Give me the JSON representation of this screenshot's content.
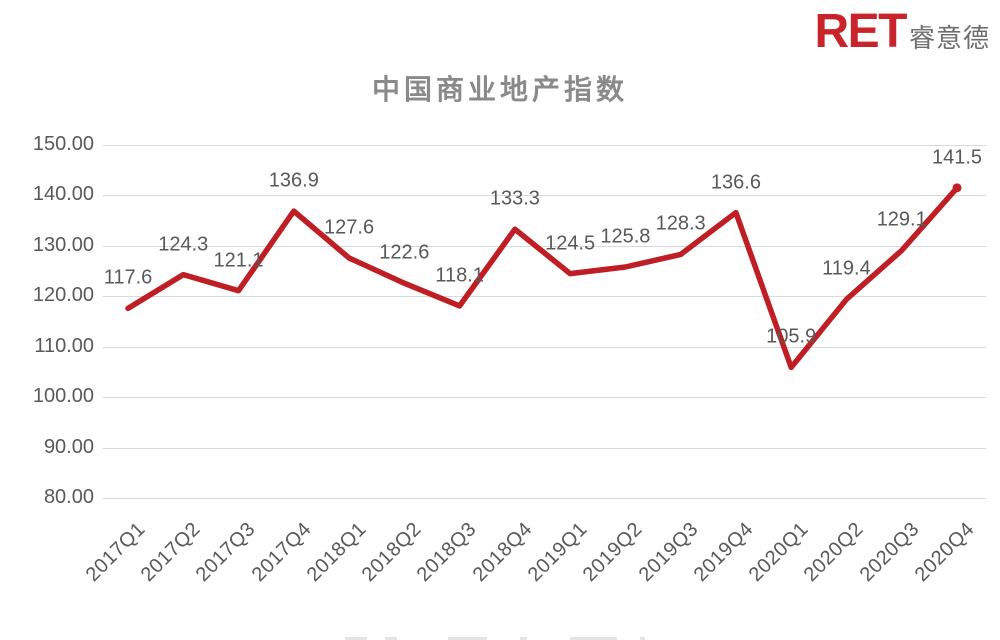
{
  "logo": {
    "ret_label": "RET",
    "cn_label": "睿意德",
    "ret_color": "#C9242B",
    "cn_color": "#6e6e6e"
  },
  "chart_data": {
    "type": "line",
    "title": "中国商业地产指数",
    "categories": [
      "2017Q1",
      "2017Q2",
      "2017Q3",
      "2017Q4",
      "2018Q1",
      "2018Q2",
      "2018Q3",
      "2018Q4",
      "2019Q1",
      "2019Q2",
      "2019Q3",
      "2019Q4",
      "2020Q1",
      "2020Q2",
      "2020Q3",
      "2020Q4"
    ],
    "values": [
      117.6,
      124.3,
      121.1,
      136.9,
      127.6,
      122.6,
      118.1,
      133.3,
      124.5,
      125.8,
      128.3,
      136.6,
      105.9,
      119.4,
      129.1,
      141.5
    ],
    "xlabel": "",
    "ylabel": "",
    "ylim": [
      80,
      150
    ],
    "ytick_step": 10,
    "ytick_labels": [
      "150.00",
      "140.00",
      "130.00",
      "120.00",
      "110.00",
      "100.00",
      "90.00",
      "80.00"
    ],
    "grid": true,
    "legend_position": "none",
    "line_color": "#C01E25",
    "gridline_color": "#d9d9d9",
    "label_color": "#595959",
    "title_color": "#8a8a8a"
  }
}
